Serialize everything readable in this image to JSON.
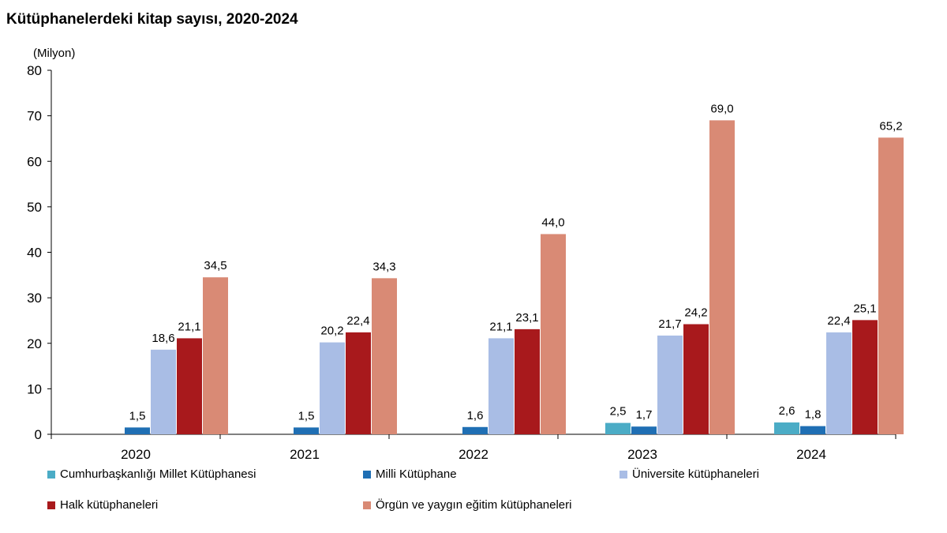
{
  "title": "Kütüphanelerdeki kitap sayısı, 2020-2024",
  "chart_data": {
    "type": "bar",
    "title": "Kütüphanelerdeki kitap sayısı, 2020-2024",
    "ylabel": "(Milyon)",
    "xlabel": "",
    "ylim": [
      0,
      80
    ],
    "yticks": [
      0,
      10,
      20,
      30,
      40,
      50,
      60,
      70,
      80
    ],
    "categories": [
      "2020",
      "2021",
      "2022",
      "2023",
      "2024"
    ],
    "grid": false,
    "legend_position": "bottom",
    "series": [
      {
        "name": "Cumhurbaşkanlığı Millet Kütüphanesi",
        "color": "#4BACC6",
        "values": [
          null,
          null,
          null,
          2.5,
          2.6
        ],
        "labels": [
          "",
          "",
          "",
          "2,5",
          "2,6"
        ]
      },
      {
        "name": "Milli Kütüphane",
        "color": "#1F6FB4",
        "values": [
          1.5,
          1.5,
          1.6,
          1.7,
          1.8
        ],
        "labels": [
          "1,5",
          "1,5",
          "1,6",
          "1,7",
          "1,8"
        ]
      },
      {
        "name": "Üniversite kütüphaneleri",
        "color": "#A9BDE5",
        "values": [
          18.6,
          20.2,
          21.1,
          21.7,
          22.4
        ],
        "labels": [
          "18,6",
          "20,2",
          "21,1",
          "21,7",
          "22,4"
        ]
      },
      {
        "name": "Halk kütüphaneleri",
        "color": "#A8191C",
        "values": [
          21.1,
          22.4,
          23.1,
          24.2,
          25.1
        ],
        "labels": [
          "21,1",
          "22,4",
          "23,1",
          "24,2",
          "25,1"
        ]
      },
      {
        "name": "Örgün ve yaygın eğitim kütüphaneleri",
        "color": "#D98A75",
        "values": [
          34.5,
          34.3,
          44.0,
          69.0,
          65.2
        ],
        "labels": [
          "34,5",
          "34,3",
          "44,0",
          "69,0",
          "65,2"
        ]
      }
    ]
  }
}
